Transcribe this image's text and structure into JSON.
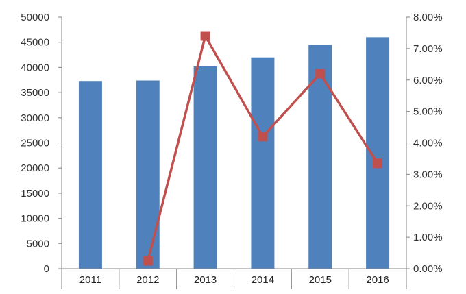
{
  "chart_data": {
    "type": "bar",
    "categories": [
      "2011",
      "2012",
      "2013",
      "2014",
      "2015",
      "2016"
    ],
    "series": [
      {
        "type": "bar",
        "axis": "left",
        "color": "#4F81BD",
        "values": [
          37300,
          37400,
          40200,
          42000,
          44500,
          46000
        ]
      },
      {
        "type": "line",
        "axis": "right",
        "color": "#C0504D",
        "marker": "square",
        "values": [
          null,
          0.25,
          7.4,
          4.2,
          6.2,
          3.35
        ]
      }
    ],
    "y_left": {
      "ylim": [
        0,
        50000
      ],
      "ticks": [
        "0",
        "5000",
        "10000",
        "15000",
        "20000",
        "25000",
        "30000",
        "35000",
        "40000",
        "45000",
        "50000"
      ]
    },
    "y_right": {
      "ylim": [
        0,
        8
      ],
      "ticks": [
        "0.00%",
        "1.00%",
        "2.00%",
        "3.00%",
        "4.00%",
        "5.00%",
        "6.00%",
        "7.00%",
        "8.00%"
      ]
    },
    "grid": false,
    "legend": "none"
  }
}
